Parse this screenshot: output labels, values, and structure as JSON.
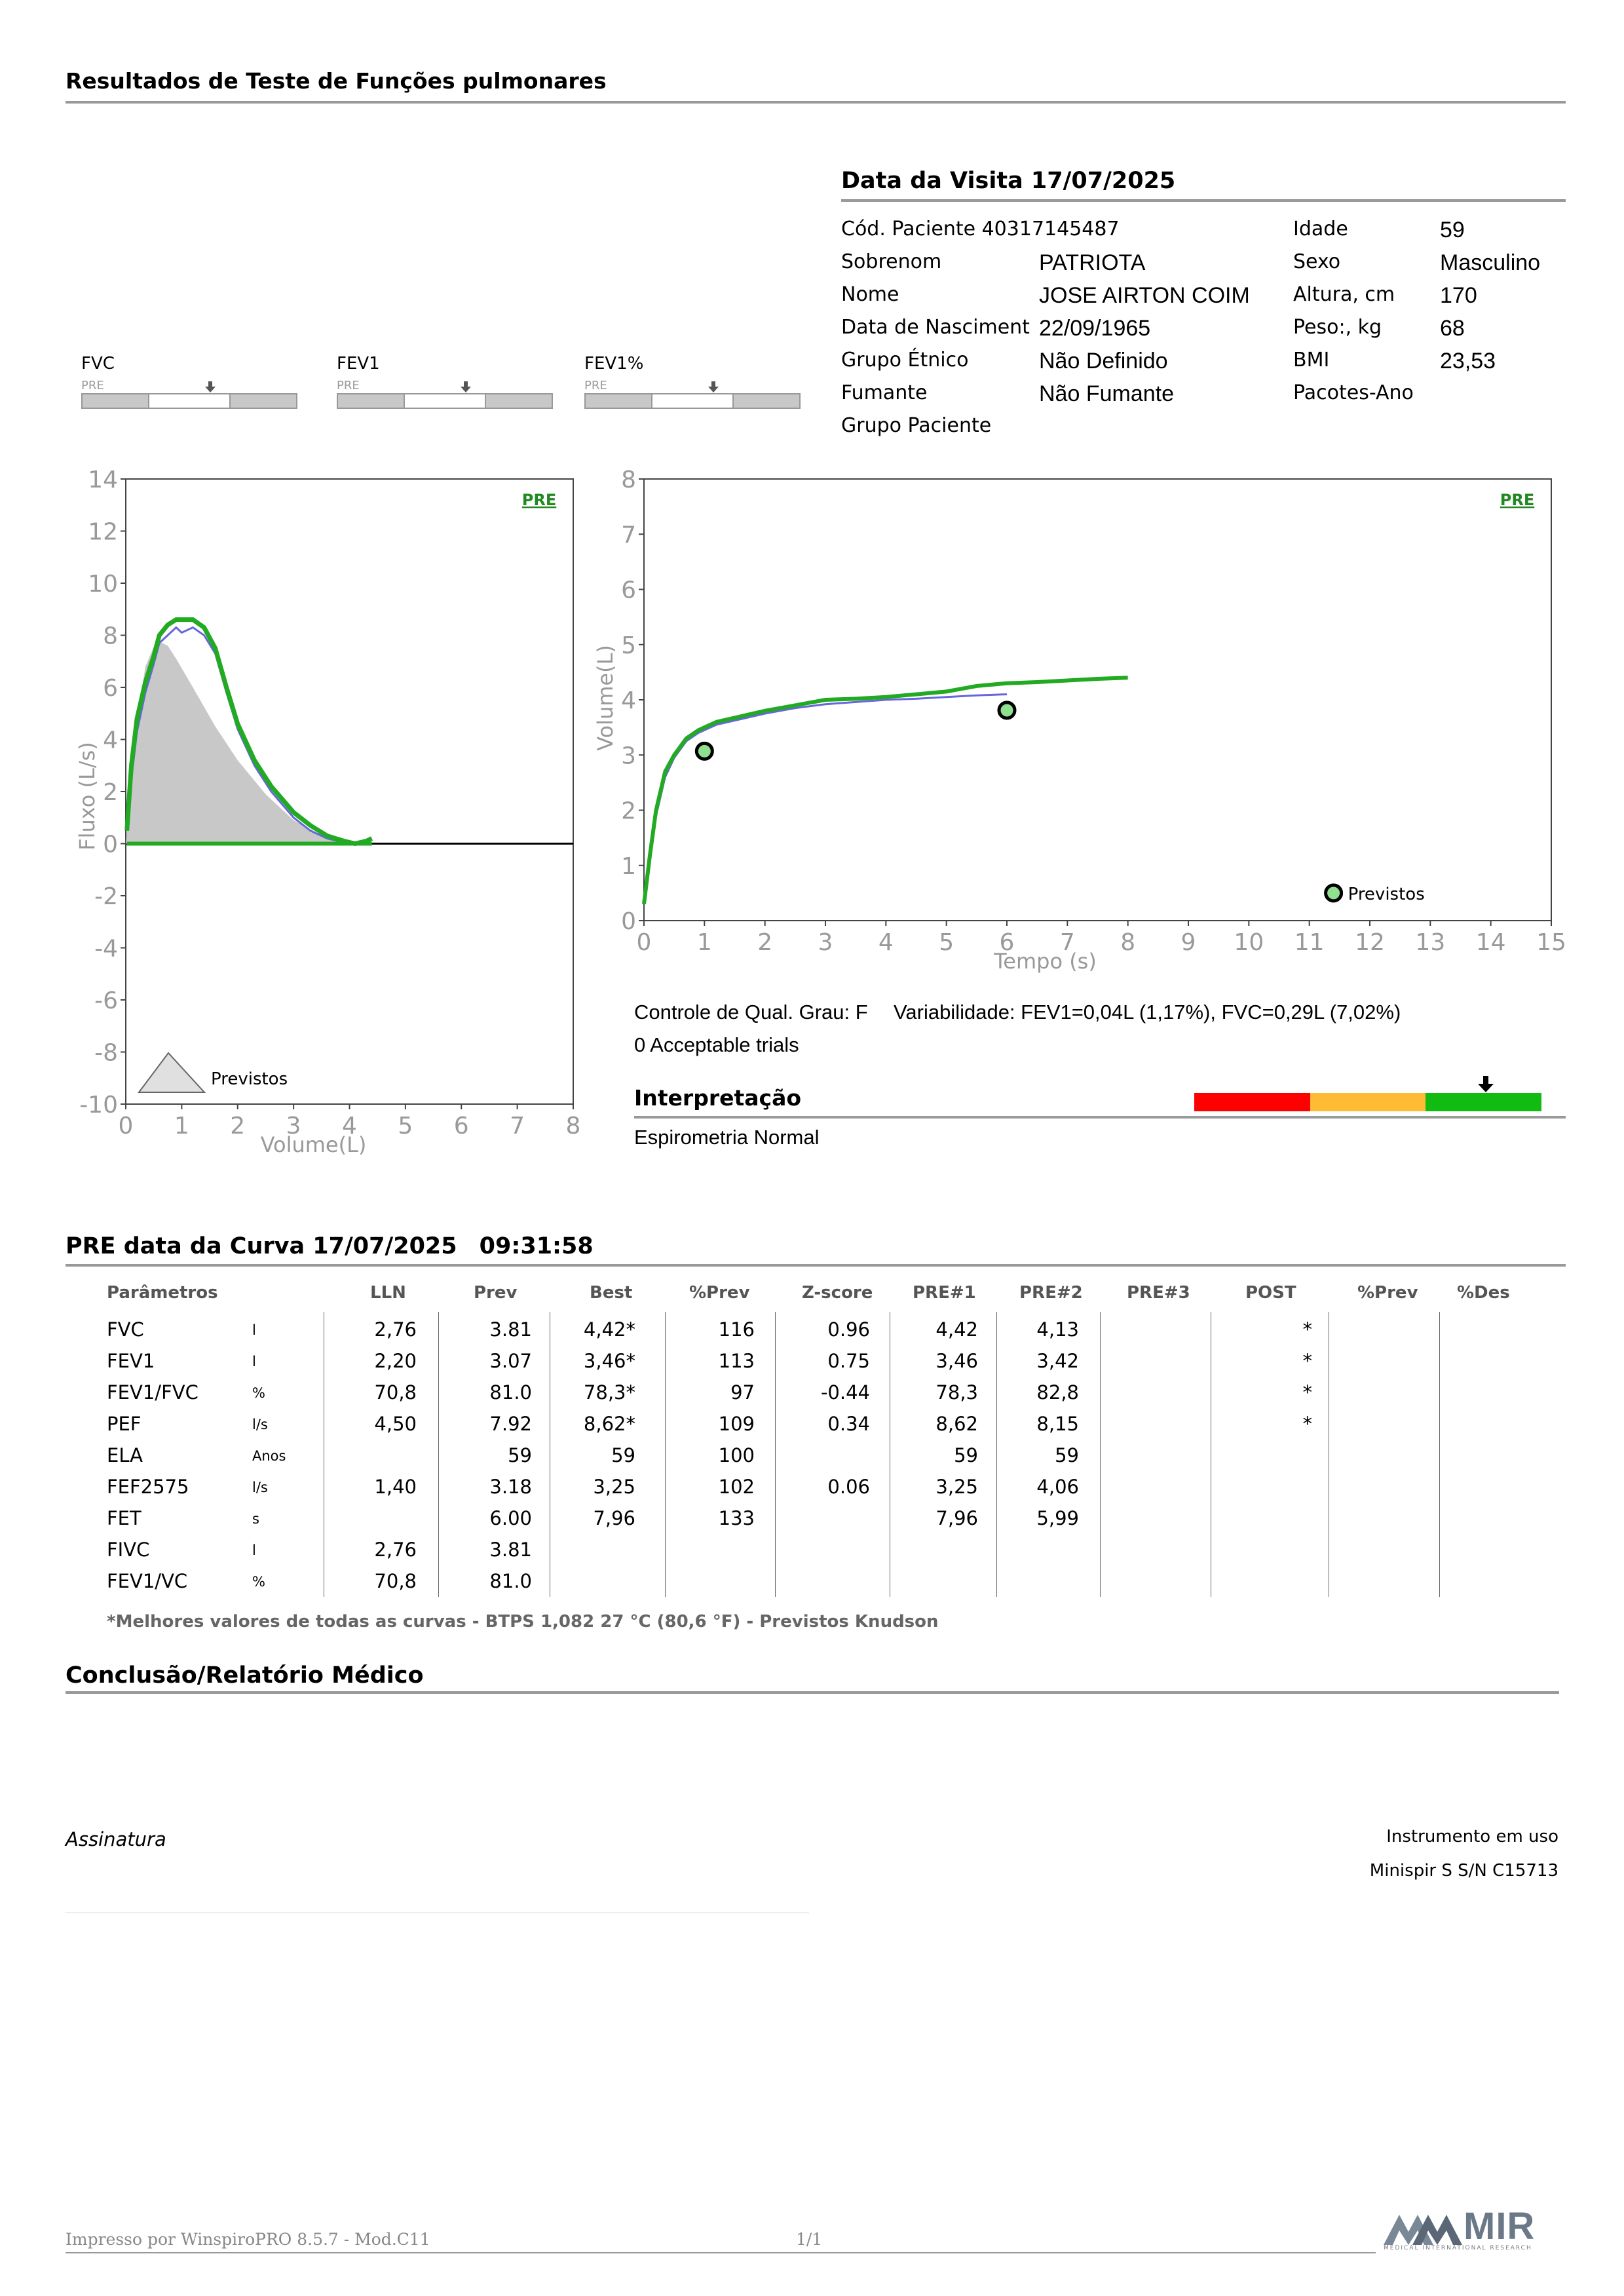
{
  "header": {
    "title": "Resultados de Teste de Funções pulmonares"
  },
  "visit": {
    "title": "Data da Visita 17/07/2025",
    "patient_code": "Cód. Paciente 40317145487",
    "fields": [
      {
        "label": "Sobrenom",
        "value": "PATRIOTA"
      },
      {
        "label": "Nome",
        "value": "JOSE AIRTON COIM"
      },
      {
        "label": "Data de Nasciment",
        "value": "22/09/1965"
      },
      {
        "label": "Grupo Étnico",
        "value": "Não Definido"
      },
      {
        "label": "Fumante",
        "value": "Não Fumante"
      },
      {
        "label": "Grupo Paciente",
        "value": ""
      }
    ],
    "right_fields": [
      {
        "label": "Idade",
        "value": "59"
      },
      {
        "label": "Sexo",
        "value": "Masculino"
      },
      {
        "label": "Altura, cm",
        "value": "170"
      },
      {
        "label": "Peso:, kg",
        "value": "68"
      },
      {
        "label": "BMI",
        "value": "23,53"
      },
      {
        "label": "Pacotes-Ano",
        "value": ""
      }
    ]
  },
  "indicators": [
    {
      "name": "FVC",
      "tag": "PRE"
    },
    {
      "name": "FEV1",
      "tag": "PRE"
    },
    {
      "name": "FEV1%",
      "tag": "PRE"
    }
  ],
  "chart_data": [
    {
      "type": "line",
      "xlabel": "Volume(L)",
      "ylabel": "Fluxo (L/s)",
      "tag": "PRE",
      "legend": "Previstos",
      "xlim": [
        0,
        8
      ],
      "ylim": [
        -10,
        14
      ],
      "x_ticks": [
        "0",
        "1",
        "2",
        "3",
        "4",
        "5",
        "6",
        "7",
        "8"
      ],
      "y_ticks": [
        "14",
        "12",
        "10",
        "8",
        "6",
        "4",
        "2",
        "0",
        "-2",
        "-4",
        "-6",
        "-8",
        "-10"
      ],
      "series": [
        {
          "color": "#22aa22",
          "x": [
            0.02,
            0.1,
            0.2,
            0.35,
            0.5,
            0.6,
            0.75,
            0.9,
            1.0,
            1.2,
            1.4,
            1.6,
            1.8,
            2.0,
            2.3,
            2.6,
            3.0,
            3.3,
            3.6,
            3.9,
            4.1,
            4.3,
            4.4
          ],
          "y": [
            0.5,
            3,
            4.8,
            6.2,
            7.2,
            8.0,
            8.4,
            8.6,
            8.6,
            8.6,
            8.3,
            7.5,
            6.0,
            4.6,
            3.2,
            2.2,
            1.2,
            0.7,
            0.3,
            0.1,
            0.0,
            0.1,
            0.2
          ]
        },
        {
          "color": "#6666dd",
          "x": [
            0.02,
            0.1,
            0.2,
            0.35,
            0.5,
            0.6,
            0.75,
            0.9,
            1.0,
            1.2,
            1.4,
            1.6,
            1.8,
            2.0,
            2.3,
            2.6,
            3.0,
            3.3,
            3.6,
            3.9,
            4.1
          ],
          "y": [
            0.5,
            2.5,
            4.3,
            5.8,
            6.9,
            7.7,
            8.0,
            8.3,
            8.1,
            8.3,
            8.0,
            7.3,
            5.8,
            4.4,
            3.0,
            2.0,
            1.0,
            0.5,
            0.2,
            0.05,
            0.0
          ]
        }
      ],
      "predicted": {
        "color": "#c8c8c8",
        "x": [
          0,
          0.15,
          0.35,
          0.55,
          0.75,
          0.9,
          1.2,
          1.6,
          2.0,
          2.5,
          3.0,
          3.6,
          4.0
        ],
        "y": [
          0,
          4.0,
          6.8,
          7.8,
          7.6,
          7.1,
          6.0,
          4.5,
          3.2,
          1.9,
          0.9,
          0.2,
          0
        ]
      }
    },
    {
      "type": "line",
      "xlabel": "Tempo (s)",
      "ylabel": "Volume(L)",
      "tag": "PRE",
      "legend": "Previstos",
      "xlim": [
        0,
        15
      ],
      "ylim": [
        0,
        8
      ],
      "x_ticks": [
        "0",
        "1",
        "2",
        "3",
        "4",
        "5",
        "6",
        "7",
        "8",
        "9",
        "10",
        "11",
        "12",
        "13",
        "14",
        "15"
      ],
      "y_ticks": [
        "8",
        "7",
        "6",
        "5",
        "4",
        "3",
        "2",
        "1",
        "0"
      ],
      "series": [
        {
          "color": "#22aa22",
          "x": [
            0,
            0.1,
            0.2,
            0.35,
            0.5,
            0.7,
            0.9,
            1.2,
            1.6,
            2.0,
            2.5,
            3.0,
            3.5,
            4.0,
            4.5,
            5.0,
            5.5,
            6.0,
            6.5,
            7.0,
            7.5,
            8.0
          ],
          "y": [
            0.3,
            1.2,
            2.0,
            2.7,
            3.0,
            3.3,
            3.45,
            3.6,
            3.7,
            3.8,
            3.9,
            4.0,
            4.02,
            4.05,
            4.1,
            4.15,
            4.25,
            4.3,
            4.32,
            4.35,
            4.38,
            4.4
          ]
        },
        {
          "color": "#6666dd",
          "x": [
            0,
            0.1,
            0.2,
            0.35,
            0.5,
            0.7,
            0.9,
            1.2,
            1.6,
            2.0,
            2.5,
            3.0,
            3.5,
            4.0,
            4.5,
            5.0,
            5.5,
            6.0
          ],
          "y": [
            0.3,
            1.1,
            1.9,
            2.6,
            2.95,
            3.25,
            3.4,
            3.55,
            3.65,
            3.75,
            3.85,
            3.92,
            3.96,
            4.0,
            4.02,
            4.05,
            4.08,
            4.1
          ]
        }
      ],
      "predicted_points": [
        {
          "x": 1.0,
          "y": 3.07
        },
        {
          "x": 6.0,
          "y": 3.81
        },
        {
          "x": 11.4,
          "y": 0.5
        }
      ]
    }
  ],
  "quality": {
    "grade": "Controle de Qual. Grau: F",
    "variability": "Variabilidade: FEV1=0,04L (1,17%), FVC=0,29L (7,02%)",
    "trials": "0 Acceptable trials"
  },
  "interpretation": {
    "title": "Interpretação",
    "text": "Espirometria Normal",
    "level": 0.84,
    "colors": [
      "#ff0000",
      "#ffbb33",
      "#11bb11"
    ]
  },
  "curve": {
    "title": "PRE data da Curva 17/07/2025",
    "time": "09:31:58"
  },
  "table": {
    "headers": [
      "Parâmetros",
      "",
      "LLN",
      "Prev",
      "Best",
      "%Prev",
      "Z-score",
      "PRE#1",
      "PRE#2",
      "PRE#3",
      "POST",
      "%Prev",
      "%Des"
    ],
    "rows": [
      [
        "FVC",
        "l",
        "2,76",
        "3.81",
        "4,42*",
        "116",
        "0.96",
        "4,42",
        "4,13",
        "",
        "*",
        "",
        ""
      ],
      [
        "FEV1",
        "l",
        "2,20",
        "3.07",
        "3,46*",
        "113",
        "0.75",
        "3,46",
        "3,42",
        "",
        "*",
        "",
        ""
      ],
      [
        "FEV1/FVC",
        "%",
        "70,8",
        "81.0",
        "78,3*",
        "97",
        "-0.44",
        "78,3",
        "82,8",
        "",
        "*",
        "",
        ""
      ],
      [
        "PEF",
        "l/s",
        "4,50",
        "7.92",
        "8,62*",
        "109",
        "0.34",
        "8,62",
        "8,15",
        "",
        "*",
        "",
        ""
      ],
      [
        "ELA",
        "Anos",
        "",
        "59",
        "59",
        "100",
        "",
        "59",
        "59",
        "",
        "",
        "",
        ""
      ],
      [
        "FEF2575",
        "l/s",
        "1,40",
        "3.18",
        "3,25",
        "102",
        "0.06",
        "3,25",
        "4,06",
        "",
        "",
        "",
        ""
      ],
      [
        "FET",
        "s",
        "",
        "6.00",
        "7,96",
        "133",
        "",
        "7,96",
        "5,99",
        "",
        "",
        "",
        ""
      ],
      [
        "FIVC",
        "l",
        "2,76",
        "3.81",
        "",
        "",
        "",
        "",
        "",
        "",
        "",
        "",
        ""
      ],
      [
        "FEV1/VC",
        "%",
        "70,8",
        "81.0",
        "",
        "",
        "",
        "",
        "",
        "",
        "",
        "",
        ""
      ]
    ],
    "footnote": "*Melhores valores de todas as curvas - BTPS  1,082  27 °C  (80,6 °F) - Previstos Knudson"
  },
  "conclusion": {
    "title": "Conclusão/Relatório Médico"
  },
  "signature": {
    "label": "Assinatura"
  },
  "instrument": {
    "label": "Instrumento em uso",
    "value": "Minispir S S/N C15713"
  },
  "footer": {
    "printed": "Impresso por WinspiroPRO  8.5.7 - Mod.C11",
    "page": "1/1",
    "logo": "MIR",
    "logo_sub": "MEDICAL INTERNATIONAL RESEARCH"
  }
}
